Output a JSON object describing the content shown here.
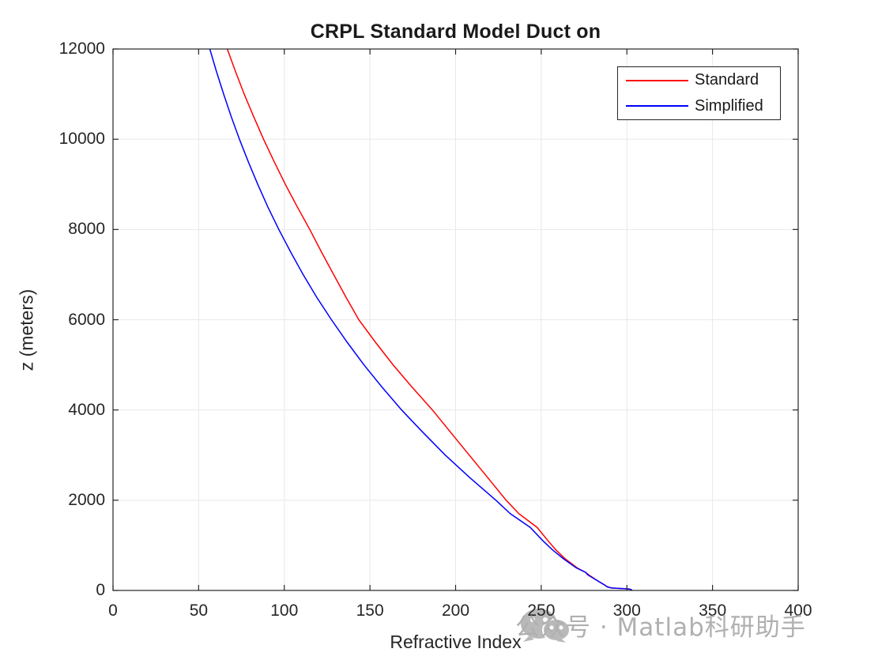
{
  "chart_data": {
    "type": "line",
    "title": "CRPL Standard Model Duct on",
    "xlabel": "Refractive Index",
    "ylabel": "z (meters)",
    "xlim": [
      0,
      400
    ],
    "ylim": [
      0,
      12000
    ],
    "xticks": [
      0,
      50,
      100,
      150,
      200,
      250,
      300,
      350,
      400
    ],
    "yticks": [
      0,
      2000,
      4000,
      6000,
      8000,
      10000,
      12000
    ],
    "grid": true,
    "grid_color": "#e8e8e8",
    "axis_color": "#262626",
    "legend": {
      "position": "top-right",
      "border_color": "#262626"
    },
    "series": [
      {
        "name": "Standard",
        "color": "#ff0000",
        "points": [
          [
            66.7,
            12000
          ],
          [
            71.5,
            11500
          ],
          [
            76.6,
            11000
          ],
          [
            82.1,
            10500
          ],
          [
            87.9,
            10000
          ],
          [
            94.1,
            9500
          ],
          [
            100.6,
            9000
          ],
          [
            107.6,
            8500
          ],
          [
            114.9,
            8000
          ],
          [
            121.7,
            7500
          ],
          [
            128.8,
            7000
          ],
          [
            136.0,
            6500
          ],
          [
            143.5,
            6000
          ],
          [
            153.2,
            5500
          ],
          [
            163.5,
            5000
          ],
          [
            174.7,
            4500
          ],
          [
            186.5,
            4000
          ],
          [
            197.2,
            3500
          ],
          [
            208.0,
            3000
          ],
          [
            218.8,
            2500
          ],
          [
            229.5,
            2000
          ],
          [
            237.0,
            1700
          ],
          [
            247.5,
            1400
          ],
          [
            254.0,
            1100
          ],
          [
            258.5,
            900
          ],
          [
            264.0,
            700
          ],
          [
            271.0,
            500
          ],
          [
            276.0,
            400
          ],
          [
            277.5,
            350
          ],
          [
            283.5,
            200
          ],
          [
            287.0,
            120
          ],
          [
            288.5,
            80
          ],
          [
            291.0,
            55
          ],
          [
            295.0,
            45
          ],
          [
            298.5,
            40
          ],
          [
            301.0,
            33
          ],
          [
            302.3,
            22
          ],
          [
            302.8,
            10
          ],
          [
            303.0,
            0
          ]
        ]
      },
      {
        "name": "Simplified",
        "color": "#0000ff",
        "points": [
          [
            56.5,
            12000
          ],
          [
            60.4,
            11500
          ],
          [
            64.6,
            11000
          ],
          [
            69.0,
            10500
          ],
          [
            73.8,
            10000
          ],
          [
            79.0,
            9500
          ],
          [
            84.5,
            9000
          ],
          [
            90.4,
            8500
          ],
          [
            96.8,
            8000
          ],
          [
            103.7,
            7500
          ],
          [
            111.0,
            7000
          ],
          [
            118.9,
            6500
          ],
          [
            127.5,
            6000
          ],
          [
            136.7,
            5500
          ],
          [
            146.5,
            5000
          ],
          [
            157.2,
            4500
          ],
          [
            168.5,
            4000
          ],
          [
            181.0,
            3500
          ],
          [
            194.0,
            3000
          ],
          [
            208.3,
            2500
          ],
          [
            223.5,
            2000
          ],
          [
            232.0,
            1700
          ],
          [
            243.5,
            1400
          ],
          [
            251.0,
            1100
          ],
          [
            256.5,
            900
          ],
          [
            263.0,
            700
          ],
          [
            270.5,
            500
          ],
          [
            276.0,
            400
          ],
          [
            277.0,
            350
          ],
          [
            283.5,
            200
          ],
          [
            287.0,
            120
          ],
          [
            288.5,
            80
          ],
          [
            291.0,
            55
          ],
          [
            295.0,
            45
          ],
          [
            298.5,
            40
          ],
          [
            301.0,
            33
          ],
          [
            302.3,
            22
          ],
          [
            302.8,
            10
          ],
          [
            303.0,
            0
          ]
        ]
      }
    ]
  },
  "watermark": {
    "icon": "wechat-icon",
    "text": "公众号 · Matlab科研助手",
    "color": "#b0b0b0"
  }
}
